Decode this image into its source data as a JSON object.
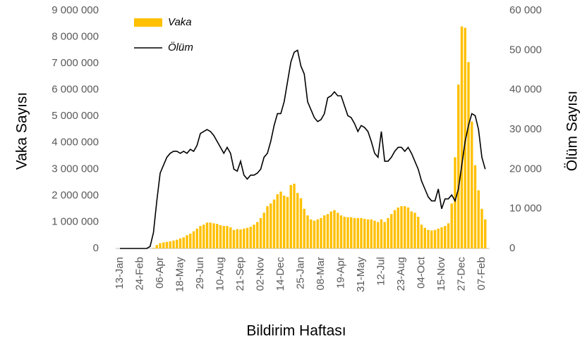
{
  "chart_data": {
    "type": "bar-line",
    "x_label": "Bildirim Haftası",
    "y_label": "Vaka Sayısı",
    "y2_label": "Ölüm Sayısı",
    "categories": [
      "13-Jan",
      null,
      null,
      null,
      null,
      null,
      "24-Feb",
      null,
      null,
      null,
      null,
      null,
      "06-Apr",
      null,
      null,
      null,
      null,
      null,
      "18-May",
      null,
      null,
      null,
      null,
      null,
      "29-Jun",
      null,
      null,
      null,
      null,
      null,
      "10-Aug",
      null,
      null,
      null,
      null,
      null,
      "21-Sep",
      null,
      null,
      null,
      null,
      null,
      "02-Nov",
      null,
      null,
      null,
      null,
      null,
      "14-Dec",
      null,
      null,
      null,
      null,
      null,
      "25-Jan",
      null,
      null,
      null,
      null,
      null,
      "08-Mar",
      null,
      null,
      null,
      null,
      null,
      "19-Apr",
      null,
      null,
      null,
      null,
      null,
      "31-May",
      null,
      null,
      null,
      null,
      null,
      "12-Jul",
      null,
      null,
      null,
      null,
      null,
      "23-Aug",
      null,
      null,
      null,
      null,
      null,
      "04-Oct",
      null,
      null,
      null,
      null,
      null,
      "15-Nov",
      null,
      null,
      null,
      null,
      null,
      "27-Dec",
      null,
      null,
      null,
      null,
      null,
      "07-Feb",
      null
    ],
    "series": [
      {
        "name": "Vaka",
        "color": "#FFC000",
        "values": [
          0,
          0,
          0,
          0,
          0,
          0,
          0,
          0,
          0,
          0,
          20000,
          130000,
          200000,
          230000,
          250000,
          270000,
          300000,
          330000,
          380000,
          420000,
          500000,
          560000,
          650000,
          750000,
          850000,
          900000,
          980000,
          980000,
          950000,
          930000,
          880000,
          850000,
          850000,
          800000,
          700000,
          730000,
          720000,
          750000,
          780000,
          820000,
          900000,
          1000000,
          1150000,
          1350000,
          1600000,
          1700000,
          1850000,
          2050000,
          2150000,
          2000000,
          1950000,
          2400000,
          2450000,
          2100000,
          1900000,
          1500000,
          1250000,
          1100000,
          1050000,
          1100000,
          1150000,
          1250000,
          1300000,
          1400000,
          1450000,
          1350000,
          1250000,
          1200000,
          1180000,
          1180000,
          1150000,
          1150000,
          1150000,
          1120000,
          1100000,
          1100000,
          1050000,
          1000000,
          1100000,
          1000000,
          1150000,
          1300000,
          1450000,
          1550000,
          1600000,
          1600000,
          1550000,
          1400000,
          1350000,
          1200000,
          900000,
          780000,
          700000,
          680000,
          700000,
          750000,
          800000,
          850000,
          950000,
          1700000,
          3450000,
          6200000,
          8400000,
          8350000,
          7050000,
          4800000,
          3150000,
          2200000,
          1500000,
          1100000
        ]
      },
      {
        "name": "Ölüm",
        "color": "#000000",
        "axis": "y2",
        "values": [
          0,
          0,
          0,
          0,
          0,
          0,
          0,
          0,
          0,
          500,
          4000,
          12000,
          19000,
          21000,
          23000,
          24000,
          24500,
          24500,
          24000,
          24500,
          24000,
          25000,
          24500,
          26000,
          29000,
          29500,
          30000,
          29500,
          28500,
          27000,
          25500,
          24000,
          25500,
          24000,
          20000,
          19500,
          22000,
          18500,
          17500,
          18500,
          18500,
          19000,
          20000,
          23000,
          24000,
          27000,
          31000,
          34000,
          34000,
          37000,
          42000,
          47000,
          49500,
          50000,
          46000,
          44000,
          37000,
          35000,
          33000,
          32000,
          32500,
          34000,
          38000,
          38500,
          39500,
          38500,
          38500,
          36000,
          33500,
          33000,
          31500,
          29500,
          31000,
          30500,
          29500,
          27000,
          24000,
          23000,
          29500,
          22000,
          22000,
          23000,
          24500,
          25500,
          25500,
          24500,
          25500,
          24000,
          22000,
          20000,
          17000,
          15000,
          13000,
          12000,
          12000,
          15000,
          10000,
          12500,
          12500,
          13500,
          12000,
          15000,
          21000,
          27000,
          31000,
          34000,
          33500,
          30000,
          23000,
          20000
        ]
      }
    ],
    "ylim": [
      0,
      9000000
    ],
    "yticks": [
      0,
      {
        "value": 1000000,
        "label": "1 000 000"
      },
      {
        "value": 2000000,
        "label": "2 000 000"
      },
      {
        "value": 3000000,
        "label": "3 000 000"
      },
      {
        "value": 4000000,
        "label": "4 000 000"
      },
      {
        "value": 5000000,
        "label": "5 000 000"
      },
      {
        "value": 6000000,
        "label": "6 000 000"
      },
      {
        "value": 7000000,
        "label": "7 000 000"
      },
      {
        "value": 8000000,
        "label": "8 000 000"
      },
      {
        "value": 9000000,
        "label": "9 000 000"
      }
    ],
    "y2lim": [
      0,
      60000
    ],
    "y2ticks": [
      0,
      {
        "value": 10000,
        "label": "10 000"
      },
      {
        "value": 20000,
        "label": "20 000"
      },
      {
        "value": 30000,
        "label": "30 000"
      },
      {
        "value": 40000,
        "label": "40 000"
      },
      {
        "value": 50000,
        "label": "50 000"
      },
      {
        "value": 60000,
        "label": "60 000"
      }
    ],
    "legend": "top-left"
  }
}
